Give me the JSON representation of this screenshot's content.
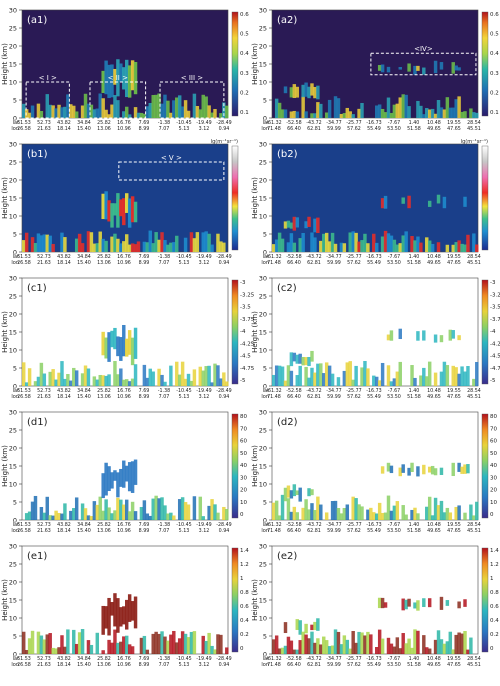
{
  "figure": {
    "shared": {
      "ylabel": "Height (km)",
      "yticks": [
        0,
        5,
        10,
        15,
        20,
        25,
        30
      ],
      "ylim": [
        0,
        30
      ],
      "track_labels": [
        "lat",
        "lon"
      ]
    },
    "rows": [
      {
        "key": "a",
        "colorbar_type": "continuous",
        "colorbar_unit": "",
        "colorbar_ticks": [
          "0.6",
          "0.5",
          "0.4",
          "0.3",
          "0.2",
          "0.1"
        ],
        "colorbar_range": [
          0.05,
          0.6
        ],
        "bg": "dark"
      },
      {
        "key": "b",
        "colorbar_type": "rainbow",
        "colorbar_unit": "lg(m⁻¹sr⁻¹)",
        "colorbar_ticks": [],
        "bg": "blue"
      },
      {
        "key": "c",
        "colorbar_type": "continuous",
        "colorbar_unit": "",
        "colorbar_ticks": [
          "-3",
          "-3.25",
          "-3.5",
          "-3.75",
          "-4",
          "-4.25",
          "-4.5",
          "-4.75",
          "-5"
        ],
        "colorbar_range": [
          -5,
          -3
        ],
        "bg": "white"
      },
      {
        "key": "d",
        "colorbar_type": "continuous",
        "colorbar_unit": "",
        "colorbar_ticks": [
          "80",
          "70",
          "60",
          "50",
          "40",
          "30",
          "20",
          "10",
          "0"
        ],
        "colorbar_range": [
          0,
          80
        ],
        "bg": "white"
      },
      {
        "key": "e",
        "colorbar_type": "continuous",
        "colorbar_unit": "",
        "colorbar_ticks": [
          "1.4",
          "1.2",
          "1",
          "0.8",
          "0.6",
          "0.4",
          "0.2",
          "0"
        ],
        "colorbar_range": [
          0,
          1.4
        ],
        "bg": "white"
      }
    ],
    "columns": [
      {
        "key": "1",
        "lat": [
          "61.53",
          "52.73",
          "43.82",
          "34.84",
          "25.82",
          "16.76",
          "7.69",
          "-1.38",
          "-10.45",
          "-19.49",
          "-28.49"
        ],
        "lon": [
          "26.58",
          "21.63",
          "18.14",
          "15.40",
          "13.06",
          "10.96",
          "8.99",
          "7.07",
          "5.13",
          "3.12",
          "0.94"
        ]
      },
      {
        "key": "2",
        "lat": [
          "-61.32",
          "-52.58",
          "-43.72",
          "-34.77",
          "-25.77",
          "-16.73",
          "-7.67",
          "1.40",
          "10.48",
          "19.55",
          "28.54"
        ],
        "lon": [
          "71.48",
          "66.40",
          "62.81",
          "59.99",
          "57.62",
          "55.49",
          "53.50",
          "51.58",
          "49.65",
          "47.65",
          "45.51"
        ]
      }
    ],
    "panel_labels": [
      "(a1)",
      "(a2)",
      "(b1)",
      "(b2)",
      "(c1)",
      "(c2)",
      "(d1)",
      "(d2)",
      "(e1)",
      "(e2)"
    ],
    "region_labels": [
      "< I >",
      "< II >",
      "< III >",
      "<IV>",
      "< V >"
    ]
  },
  "chart_data": {
    "type": "heatmap",
    "description_axis": {
      "x": "orbit track (lat/lon)",
      "y": "Height (km)"
    },
    "ylim": [
      0,
      30
    ],
    "panels": [
      {
        "label": "(a1)",
        "colorbar": [
          0.05,
          0.6
        ]
      },
      {
        "label": "(a2)",
        "colorbar": [
          0.05,
          0.6
        ]
      },
      {
        "label": "(b1)",
        "colorbar_unit": "lg(m⁻¹sr⁻¹)"
      },
      {
        "label": "(b2)",
        "colorbar_unit": "lg(m⁻¹sr⁻¹)"
      },
      {
        "label": "(c1)",
        "colorbar": [
          -5,
          -3
        ]
      },
      {
        "label": "(c2)",
        "colorbar": [
          -5,
          -3
        ]
      },
      {
        "label": "(d1)",
        "colorbar": [
          0,
          80
        ]
      },
      {
        "label": "(d2)",
        "colorbar": [
          0,
          80
        ]
      },
      {
        "label": "(e1)",
        "colorbar": [
          0,
          1.4
        ]
      },
      {
        "label": "(e2)",
        "colorbar": [
          0,
          1.4
        ]
      }
    ],
    "annotated_regions": [
      {
        "label": "< I >",
        "panel": "(a1)",
        "x_range_frac": [
          0.02,
          0.23
        ],
        "y_range": [
          0,
          10
        ]
      },
      {
        "label": "< II >",
        "panel": "(a1)",
        "x_range_frac": [
          0.33,
          0.6
        ],
        "y_range": [
          0,
          10
        ]
      },
      {
        "label": "< III >",
        "panel": "(a1)",
        "x_range_frac": [
          0.67,
          0.98
        ],
        "y_range": [
          0,
          10
        ]
      },
      {
        "label": "<IV>",
        "panel": "(a2)",
        "x_range_frac": [
          0.48,
          0.99
        ],
        "y_range": [
          12,
          18
        ]
      },
      {
        "label": "< V >",
        "panel": "(b1)",
        "x_range_frac": [
          0.47,
          0.98
        ],
        "y_range": [
          20,
          25
        ]
      }
    ]
  }
}
